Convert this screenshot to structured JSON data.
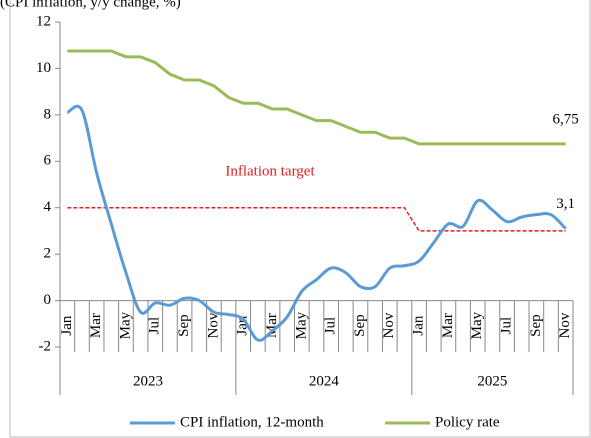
{
  "chart_data": {
    "type": "line",
    "subtitle": "(CPI inflation, y/y change, %)",
    "categories": [
      "Jan",
      null,
      "Mar",
      null,
      "May",
      null,
      "Jul",
      null,
      "Sep",
      null,
      "Nov",
      null,
      "Jan",
      null,
      "Mar",
      null,
      "May",
      null,
      "Jul",
      null,
      "Sep",
      null,
      "Nov",
      null,
      "Jan",
      null,
      "Mar",
      null,
      "May",
      null,
      "Jul",
      null,
      "Sep",
      null,
      "Nov"
    ],
    "x_groups": [
      "2023",
      "2024",
      "2025"
    ],
    "series": [
      {
        "name": "CPI inflation, 12-month",
        "color": "#5b9bd5",
        "smooth": true,
        "values": [
          8.1,
          8.2,
          5.5,
          3.3,
          1.2,
          -0.5,
          -0.1,
          -0.2,
          0.1,
          0.0,
          -0.5,
          -0.6,
          -0.8,
          -1.7,
          -1.3,
          -0.7,
          0.4,
          0.9,
          1.4,
          1.2,
          0.6,
          0.6,
          1.4,
          1.5,
          1.7,
          2.5,
          3.3,
          3.2,
          4.3,
          3.9,
          3.4,
          3.6,
          3.7,
          3.7,
          3.1
        ],
        "value_labels": [
          null,
          null,
          null,
          null,
          null,
          null,
          null,
          null,
          null,
          null,
          null,
          null,
          null,
          null,
          null,
          null,
          null,
          null,
          null,
          null,
          null,
          null,
          null,
          null,
          null,
          null,
          null,
          null,
          null,
          null,
          null,
          null,
          null,
          null,
          "3,1"
        ]
      },
      {
        "name": "Policy rate",
        "color": "#9bbb59",
        "smooth": false,
        "values": [
          10.75,
          10.75,
          10.75,
          10.75,
          10.5,
          10.5,
          10.25,
          9.75,
          9.5,
          9.5,
          9.25,
          8.75,
          8.5,
          8.5,
          8.25,
          8.25,
          8.0,
          7.75,
          7.75,
          7.5,
          7.25,
          7.25,
          7.0,
          7.0,
          6.75,
          6.75,
          6.75,
          6.75,
          6.75,
          6.75,
          6.75,
          6.75,
          6.75,
          6.75,
          6.75
        ],
        "value_labels": [
          null,
          null,
          null,
          null,
          null,
          null,
          null,
          null,
          null,
          null,
          null,
          null,
          null,
          null,
          null,
          null,
          null,
          null,
          null,
          null,
          null,
          null,
          null,
          null,
          null,
          null,
          null,
          null,
          null,
          null,
          null,
          null,
          null,
          null,
          "6,75"
        ]
      }
    ],
    "target": {
      "label": "Inflation target",
      "color": "#e02020",
      "values": [
        4,
        4,
        4,
        4,
        4,
        4,
        4,
        4,
        4,
        4,
        4,
        4,
        4,
        4,
        4,
        4,
        4,
        4,
        4,
        4,
        4,
        4,
        4,
        4,
        3,
        3,
        3,
        3,
        3,
        3,
        3,
        3,
        3,
        3,
        3
      ]
    },
    "ylim": [
      -2,
      12
    ],
    "yticks": [
      -2,
      0,
      2,
      4,
      6,
      8,
      10,
      12
    ],
    "grid": false
  }
}
